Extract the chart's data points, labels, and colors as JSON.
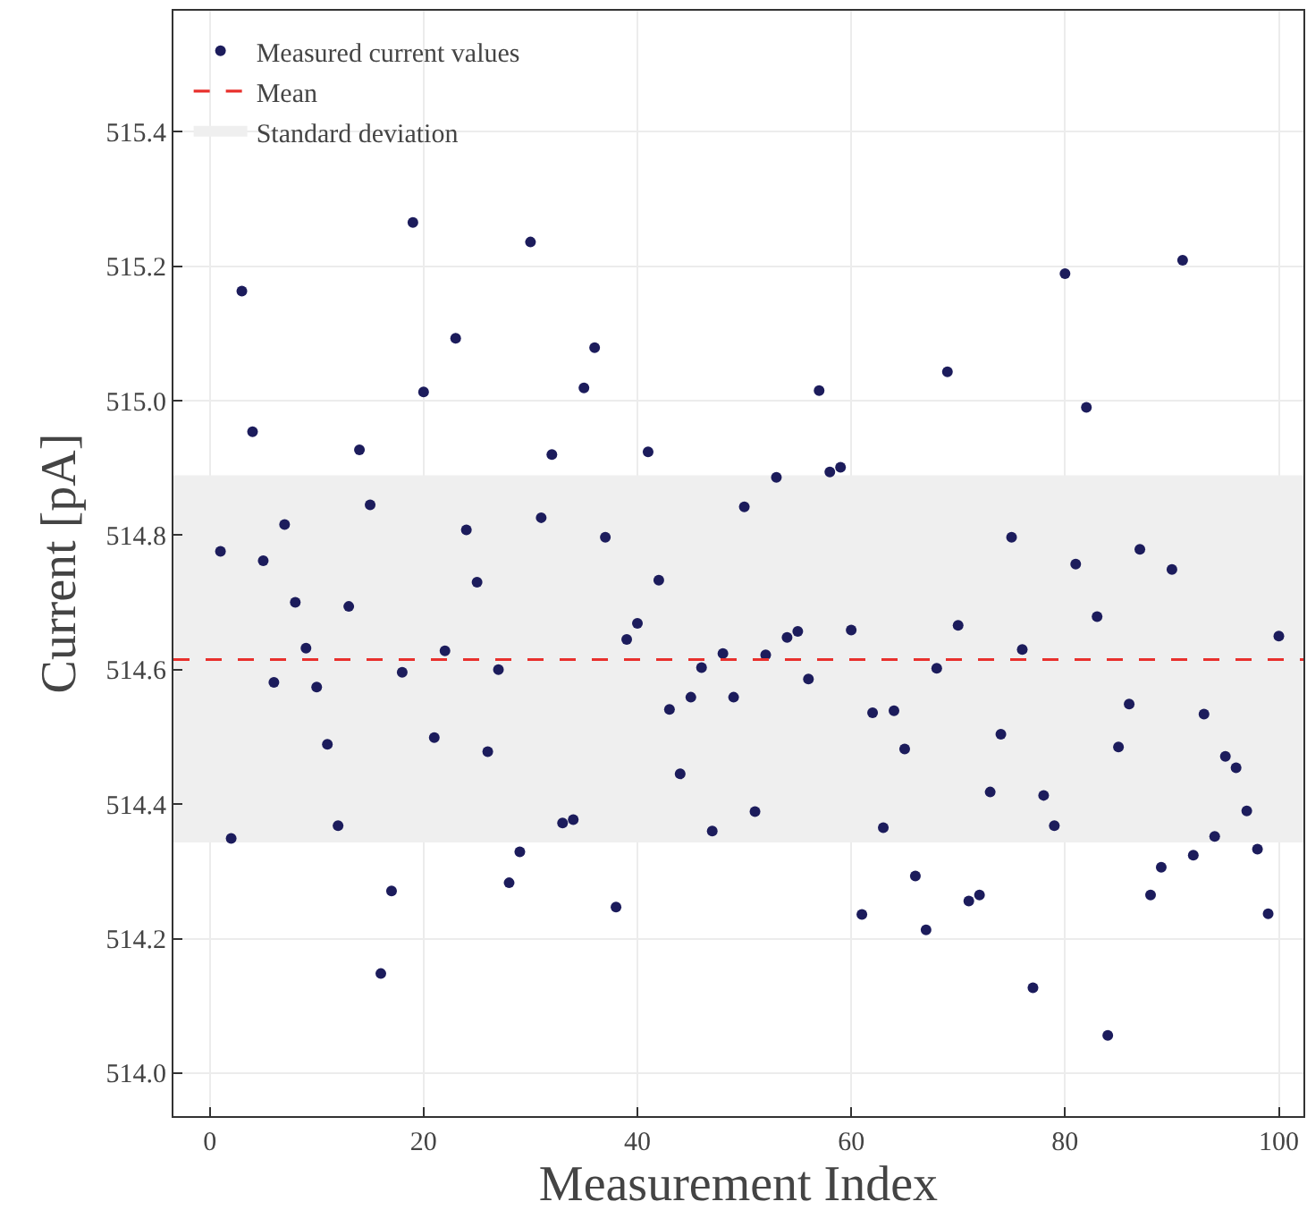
{
  "chart_data": {
    "type": "scatter",
    "xlabel": "Measurement Index",
    "ylabel": "Current [pA]",
    "x": [
      1,
      2,
      3,
      4,
      5,
      6,
      7,
      8,
      9,
      10,
      11,
      12,
      13,
      14,
      15,
      16,
      17,
      18,
      19,
      20,
      21,
      22,
      23,
      24,
      25,
      26,
      27,
      28,
      29,
      30,
      31,
      32,
      33,
      34,
      35,
      36,
      37,
      38,
      39,
      40,
      41,
      42,
      43,
      44,
      45,
      46,
      47,
      48,
      49,
      50,
      51,
      52,
      53,
      54,
      55,
      56,
      57,
      58,
      59,
      60,
      61,
      62,
      63,
      64,
      65,
      66,
      67,
      68,
      69,
      70,
      71,
      72,
      73,
      74,
      75,
      76,
      77,
      78,
      79,
      80,
      81,
      82,
      83,
      84,
      85,
      86,
      87,
      88,
      89,
      90,
      91,
      92,
      93,
      94,
      95,
      96,
      97,
      98,
      99,
      100
    ],
    "series": [
      {
        "name": "Measured current values",
        "color": "#1c1c5c",
        "values": [
          514.776,
          514.349,
          515.163,
          514.954,
          514.762,
          514.581,
          514.816,
          514.7,
          514.632,
          514.574,
          514.489,
          514.368,
          514.694,
          514.927,
          514.845,
          514.148,
          514.271,
          514.596,
          515.265,
          515.013,
          514.499,
          514.628,
          515.093,
          514.808,
          514.73,
          514.478,
          514.6,
          514.283,
          514.329,
          515.236,
          514.826,
          514.92,
          514.372,
          514.377,
          515.019,
          515.079,
          514.797,
          514.247,
          514.645,
          514.669,
          514.924,
          514.733,
          514.541,
          514.445,
          514.559,
          514.603,
          514.36,
          514.624,
          514.559,
          514.842,
          514.389,
          514.622,
          514.886,
          514.648,
          514.657,
          514.586,
          515.015,
          514.894,
          514.901,
          514.659,
          514.236,
          514.536,
          514.365,
          514.539,
          514.482,
          514.293,
          514.213,
          514.602,
          515.043,
          514.666,
          514.256,
          514.265,
          514.418,
          514.504,
          514.797,
          514.63,
          514.127,
          514.413,
          514.368,
          515.189,
          514.757,
          514.99,
          514.679,
          514.056,
          514.485,
          514.549,
          514.779,
          514.265,
          514.306,
          514.749,
          515.209,
          514.324,
          514.534,
          514.352,
          514.471,
          514.454,
          514.39,
          514.333,
          514.237,
          514.65
        ]
      }
    ],
    "ref_lines": [
      {
        "axis": "y",
        "value": 514.615,
        "label": "Mean",
        "color": "#e8302c",
        "line_style": "dashed"
      }
    ],
    "bands": [
      {
        "axis": "y",
        "from": 514.343,
        "to": 514.889,
        "label": "Standard deviation",
        "color": "#efefef"
      }
    ],
    "xlim": [
      -3.4,
      102.3
    ],
    "ylim": [
      513.936,
      515.58
    ],
    "xticks": [
      0,
      20,
      40,
      60,
      80,
      100
    ],
    "yticks": [
      {
        "value": 514.0,
        "label": "514.0"
      },
      514.2,
      514.4,
      514.6,
      514.8,
      {
        "value": 515.0,
        "label": "515.0"
      },
      515.2,
      515.4
    ],
    "grid": true,
    "legend": "top left",
    "marker": "circle"
  }
}
